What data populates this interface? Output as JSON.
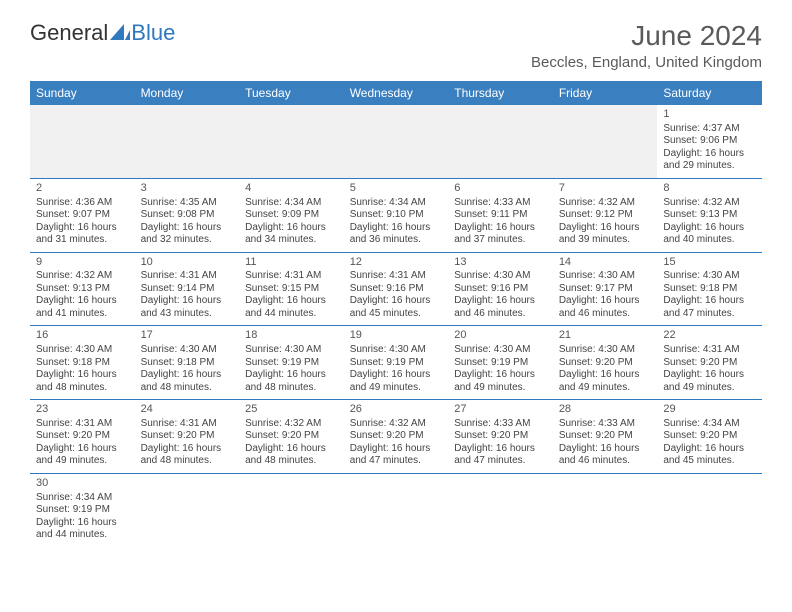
{
  "logo": {
    "part1": "General",
    "part2": "Blue"
  },
  "title": "June 2024",
  "location": "Beccles, England, United Kingdom",
  "colors": {
    "header_bg": "#3a7fc0",
    "header_text": "#ffffff",
    "accent_blue": "#2f79bf",
    "text": "#444444",
    "title_text": "#5a5a5a",
    "blank_bg": "#f0f0f0",
    "page_bg": "#ffffff"
  },
  "weekdays": [
    "Sunday",
    "Monday",
    "Tuesday",
    "Wednesday",
    "Thursday",
    "Friday",
    "Saturday"
  ],
  "weeks": [
    [
      null,
      null,
      null,
      null,
      null,
      null,
      {
        "n": "1",
        "sr": "Sunrise: 4:37 AM",
        "ss": "Sunset: 9:06 PM",
        "d1": "Daylight: 16 hours",
        "d2": "and 29 minutes."
      }
    ],
    [
      {
        "n": "2",
        "sr": "Sunrise: 4:36 AM",
        "ss": "Sunset: 9:07 PM",
        "d1": "Daylight: 16 hours",
        "d2": "and 31 minutes."
      },
      {
        "n": "3",
        "sr": "Sunrise: 4:35 AM",
        "ss": "Sunset: 9:08 PM",
        "d1": "Daylight: 16 hours",
        "d2": "and 32 minutes."
      },
      {
        "n": "4",
        "sr": "Sunrise: 4:34 AM",
        "ss": "Sunset: 9:09 PM",
        "d1": "Daylight: 16 hours",
        "d2": "and 34 minutes."
      },
      {
        "n": "5",
        "sr": "Sunrise: 4:34 AM",
        "ss": "Sunset: 9:10 PM",
        "d1": "Daylight: 16 hours",
        "d2": "and 36 minutes."
      },
      {
        "n": "6",
        "sr": "Sunrise: 4:33 AM",
        "ss": "Sunset: 9:11 PM",
        "d1": "Daylight: 16 hours",
        "d2": "and 37 minutes."
      },
      {
        "n": "7",
        "sr": "Sunrise: 4:32 AM",
        "ss": "Sunset: 9:12 PM",
        "d1": "Daylight: 16 hours",
        "d2": "and 39 minutes."
      },
      {
        "n": "8",
        "sr": "Sunrise: 4:32 AM",
        "ss": "Sunset: 9:13 PM",
        "d1": "Daylight: 16 hours",
        "d2": "and 40 minutes."
      }
    ],
    [
      {
        "n": "9",
        "sr": "Sunrise: 4:32 AM",
        "ss": "Sunset: 9:13 PM",
        "d1": "Daylight: 16 hours",
        "d2": "and 41 minutes."
      },
      {
        "n": "10",
        "sr": "Sunrise: 4:31 AM",
        "ss": "Sunset: 9:14 PM",
        "d1": "Daylight: 16 hours",
        "d2": "and 43 minutes."
      },
      {
        "n": "11",
        "sr": "Sunrise: 4:31 AM",
        "ss": "Sunset: 9:15 PM",
        "d1": "Daylight: 16 hours",
        "d2": "and 44 minutes."
      },
      {
        "n": "12",
        "sr": "Sunrise: 4:31 AM",
        "ss": "Sunset: 9:16 PM",
        "d1": "Daylight: 16 hours",
        "d2": "and 45 minutes."
      },
      {
        "n": "13",
        "sr": "Sunrise: 4:30 AM",
        "ss": "Sunset: 9:16 PM",
        "d1": "Daylight: 16 hours",
        "d2": "and 46 minutes."
      },
      {
        "n": "14",
        "sr": "Sunrise: 4:30 AM",
        "ss": "Sunset: 9:17 PM",
        "d1": "Daylight: 16 hours",
        "d2": "and 46 minutes."
      },
      {
        "n": "15",
        "sr": "Sunrise: 4:30 AM",
        "ss": "Sunset: 9:18 PM",
        "d1": "Daylight: 16 hours",
        "d2": "and 47 minutes."
      }
    ],
    [
      {
        "n": "16",
        "sr": "Sunrise: 4:30 AM",
        "ss": "Sunset: 9:18 PM",
        "d1": "Daylight: 16 hours",
        "d2": "and 48 minutes."
      },
      {
        "n": "17",
        "sr": "Sunrise: 4:30 AM",
        "ss": "Sunset: 9:18 PM",
        "d1": "Daylight: 16 hours",
        "d2": "and 48 minutes."
      },
      {
        "n": "18",
        "sr": "Sunrise: 4:30 AM",
        "ss": "Sunset: 9:19 PM",
        "d1": "Daylight: 16 hours",
        "d2": "and 48 minutes."
      },
      {
        "n": "19",
        "sr": "Sunrise: 4:30 AM",
        "ss": "Sunset: 9:19 PM",
        "d1": "Daylight: 16 hours",
        "d2": "and 49 minutes."
      },
      {
        "n": "20",
        "sr": "Sunrise: 4:30 AM",
        "ss": "Sunset: 9:19 PM",
        "d1": "Daylight: 16 hours",
        "d2": "and 49 minutes."
      },
      {
        "n": "21",
        "sr": "Sunrise: 4:30 AM",
        "ss": "Sunset: 9:20 PM",
        "d1": "Daylight: 16 hours",
        "d2": "and 49 minutes."
      },
      {
        "n": "22",
        "sr": "Sunrise: 4:31 AM",
        "ss": "Sunset: 9:20 PM",
        "d1": "Daylight: 16 hours",
        "d2": "and 49 minutes."
      }
    ],
    [
      {
        "n": "23",
        "sr": "Sunrise: 4:31 AM",
        "ss": "Sunset: 9:20 PM",
        "d1": "Daylight: 16 hours",
        "d2": "and 49 minutes."
      },
      {
        "n": "24",
        "sr": "Sunrise: 4:31 AM",
        "ss": "Sunset: 9:20 PM",
        "d1": "Daylight: 16 hours",
        "d2": "and 48 minutes."
      },
      {
        "n": "25",
        "sr": "Sunrise: 4:32 AM",
        "ss": "Sunset: 9:20 PM",
        "d1": "Daylight: 16 hours",
        "d2": "and 48 minutes."
      },
      {
        "n": "26",
        "sr": "Sunrise: 4:32 AM",
        "ss": "Sunset: 9:20 PM",
        "d1": "Daylight: 16 hours",
        "d2": "and 47 minutes."
      },
      {
        "n": "27",
        "sr": "Sunrise: 4:33 AM",
        "ss": "Sunset: 9:20 PM",
        "d1": "Daylight: 16 hours",
        "d2": "and 47 minutes."
      },
      {
        "n": "28",
        "sr": "Sunrise: 4:33 AM",
        "ss": "Sunset: 9:20 PM",
        "d1": "Daylight: 16 hours",
        "d2": "and 46 minutes."
      },
      {
        "n": "29",
        "sr": "Sunrise: 4:34 AM",
        "ss": "Sunset: 9:20 PM",
        "d1": "Daylight: 16 hours",
        "d2": "and 45 minutes."
      }
    ],
    [
      {
        "n": "30",
        "sr": "Sunrise: 4:34 AM",
        "ss": "Sunset: 9:19 PM",
        "d1": "Daylight: 16 hours",
        "d2": "and 44 minutes."
      },
      null,
      null,
      null,
      null,
      null,
      null
    ]
  ]
}
